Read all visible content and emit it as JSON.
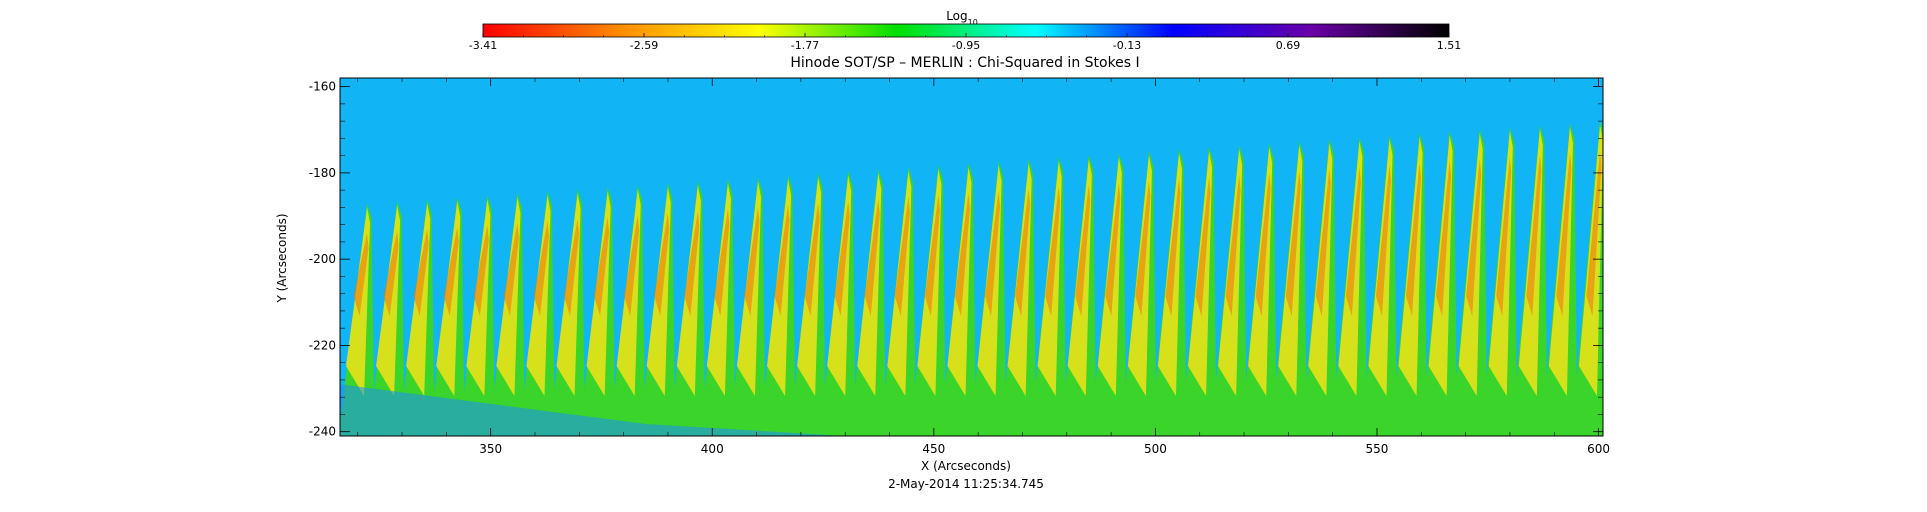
{
  "chart_data": {
    "type": "heatmap",
    "title": "Hinode SOT/SP – MERLIN : Chi-Squared in Stokes I",
    "xlabel": "X (Arcseconds)",
    "ylabel": "Y (Arcseconds)",
    "timestamp": "2-May-2014 11:25:34.745",
    "xlim": [
      316,
      601
    ],
    "ylim": [
      -241,
      -158
    ],
    "x_ticks": [
      350,
      400,
      450,
      500,
      550,
      600
    ],
    "y_ticks": [
      -160,
      -180,
      -200,
      -220,
      -240
    ],
    "colorbar": {
      "label_base": "Log",
      "label_sub": "10",
      "ticks": [
        "-3.41",
        "-2.59",
        "-1.77",
        "-0.95",
        "-0.13",
        "0.69",
        "1.51"
      ],
      "colormap": [
        "#ff0000",
        "#ff8c00",
        "#ffff00",
        "#00e000",
        "#00ffff",
        "#0000ff",
        "#6a00a8",
        "#000000"
      ]
    },
    "pattern": {
      "background": "#11b4f4",
      "stripe_count": 42,
      "description_values": {
        "stripe_top_left_y": -187,
        "stripe_top_right_y": -168,
        "bottom_left_blue_region_top_y": -229
      }
    },
    "grid": false
  }
}
